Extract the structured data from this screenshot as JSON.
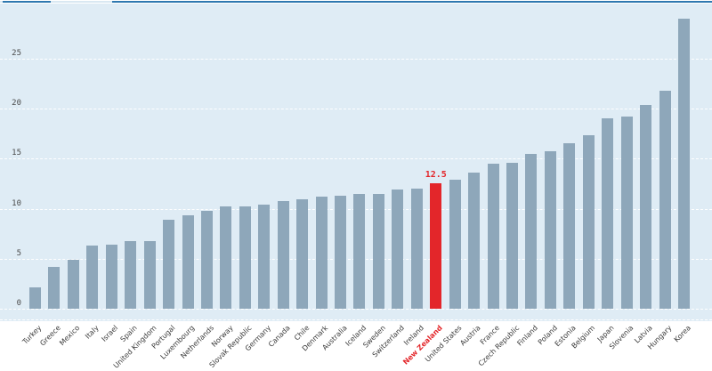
{
  "chart_data": {
    "type": "bar",
    "title": "",
    "xlabel": "",
    "ylabel": "",
    "legend": "none",
    "grid": "horizontal white dashed lines on light blue panel",
    "categories": [
      "Turkey",
      "Greece",
      "Mexico",
      "Italy",
      "Israel",
      "Spain",
      "United Kingdom",
      "Portugal",
      "Luxembourg",
      "Netherlands",
      "Norway",
      "Slovak Republic",
      "Germany",
      "Canada",
      "Chile",
      "Denmark",
      "Australia",
      "Iceland",
      "Sweden",
      "Switzerland",
      "Ireland",
      "New Zealand",
      "United States",
      "Austria",
      "France",
      "Czech Republic",
      "Finland",
      "Poland",
      "Estonia",
      "Belgium",
      "Japan",
      "Slovenia",
      "Latvia",
      "Hungary",
      "Korea"
    ],
    "values": [
      2.1,
      4.2,
      4.9,
      6.3,
      6.4,
      6.8,
      6.8,
      8.9,
      9.3,
      9.8,
      10.2,
      10.2,
      10.4,
      10.8,
      10.9,
      11.2,
      11.3,
      11.5,
      11.5,
      11.9,
      12.0,
      12.5,
      12.9,
      13.6,
      14.5,
      14.6,
      15.5,
      15.7,
      16.5,
      17.3,
      19.0,
      19.2,
      20.4,
      21.8,
      29.0
    ],
    "yticks": [
      0,
      5,
      10,
      15,
      20,
      25
    ],
    "ytick_labels": [
      "0",
      "5",
      "10",
      "15",
      "20",
      "25"
    ],
    "ylim": [
      0,
      30.5
    ],
    "highlight_category": "New Zealand",
    "highlight_value_label": "12.5",
    "colors": {
      "bar": "#8ea7ba",
      "highlight": "#e3262a",
      "plot_background": "#dfecf5",
      "page_background": "#ffffff",
      "top_rule": "#2e78b0",
      "top_rule_gap": "#d9e8f2",
      "tick_text": "#4a4a4a",
      "xlabel_text": "#3a3a3a"
    }
  }
}
